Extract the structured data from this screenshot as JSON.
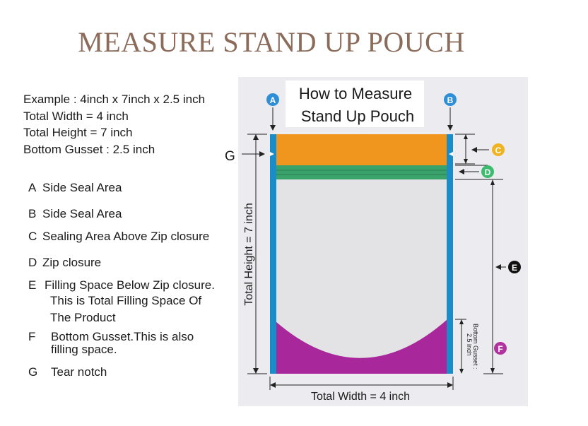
{
  "title": "MEASURE STAND UP POUCH",
  "example": {
    "line1": "Example : 4inch x 7inch x 2.5 inch",
    "line2": "Total Width  = 4 inch",
    "line3": "Total Height = 7 inch",
    "line4": "Bottom Gusset : 2.5 inch"
  },
  "legend": [
    {
      "letter": "A",
      "text": "Side Seal Area"
    },
    {
      "letter": "B",
      "text": "Side Seal Area"
    },
    {
      "letter": "C",
      "text": "Sealing Area Above Zip closure"
    },
    {
      "letter": "D",
      "text": "Zip closure"
    },
    {
      "letter": "E",
      "text": "Filling Space Below Zip closure."
    },
    {
      "letter": "F",
      "text": "Bottom Gusset.This is also"
    },
    {
      "letter": "G",
      "text": "Tear notch"
    }
  ],
  "legend_extra": {
    "e_line2": "This is Total Filling Space Of",
    "e_line3": "The Product",
    "f_line2": "filling space."
  },
  "diagram": {
    "heading_line1": "How to Measure",
    "heading_line2": "Stand Up Pouch",
    "label_a": "A",
    "label_b": "B",
    "label_c": "C",
    "label_d": "D",
    "label_e": "E",
    "label_f": "F",
    "label_g": "G",
    "total_height": "Total Height = 7 inch",
    "total_width": "Total Width = 4 inch",
    "gusset_line1": "Bottom Gusset :",
    "gusset_line2": "2.5 inch"
  },
  "colors": {
    "title": "#8b6b5a",
    "side_seal": "#1a8cc8",
    "top_seal": "#f0961e",
    "zip": "#3aa36c",
    "gusset": "#a8279a",
    "badge_a": "#2e8fd6",
    "badge_b": "#2e8fd6",
    "badge_c": "#f0b323",
    "badge_d": "#3dbb6e",
    "badge_e": "#111111",
    "badge_f": "#b2329e"
  }
}
